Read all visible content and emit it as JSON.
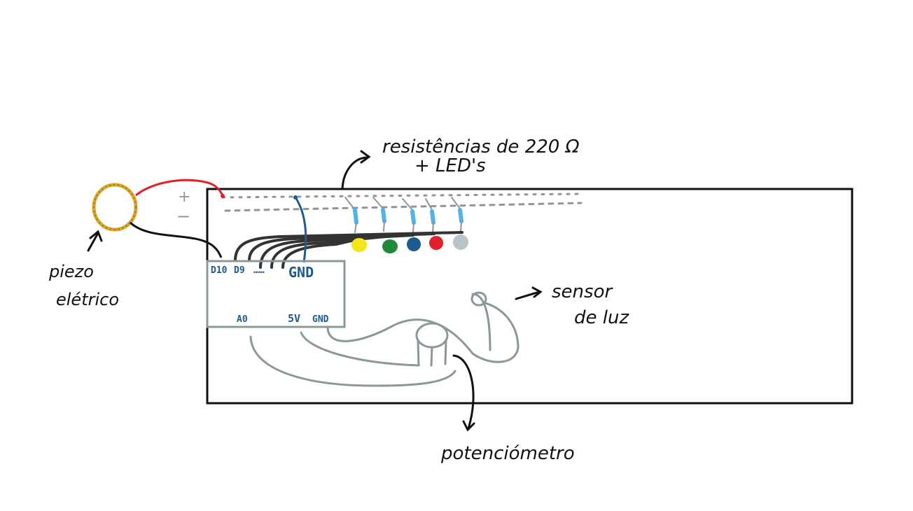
{
  "diagram": {
    "labels": {
      "resistors_line1": "resistências de 220 Ω",
      "resistors_line2": "+ LED's",
      "piezo_line1": "piezo",
      "piezo_line2": "elétrico",
      "light_sensor_line1": "sensor",
      "light_sensor_line2": "de luz",
      "potentiometer": "potenciómetro",
      "plus_sign": "+",
      "minus_sign": "−"
    },
    "arduino_pins": {
      "d10": "D10",
      "d9": "D9",
      "dots": "……",
      "gnd_top": "GND",
      "a0": "A0",
      "v5": "5V",
      "gnd_bottom": "GND"
    },
    "leds": [
      {
        "color": "#f5e61a"
      },
      {
        "color": "#1f8a3a"
      },
      {
        "color": "#1f5a8e"
      },
      {
        "color": "#e0202a"
      },
      {
        "color": "#b8c6c9"
      }
    ],
    "colors": {
      "breadboard_outline": "#111111",
      "arduino_outline": "#8c979a",
      "wire_dark": "#333333",
      "wire_red": "#e0202a",
      "wire_blue": "#1f5a8e",
      "resistor": "#4fb3e8",
      "piezo": "#d9a52a",
      "sensor_wire": "#8c979a"
    }
  }
}
